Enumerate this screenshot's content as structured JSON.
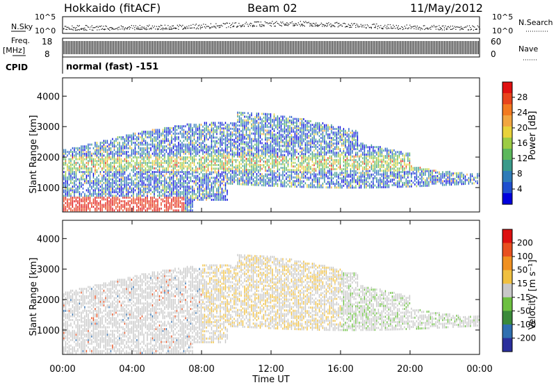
{
  "header": {
    "station": "Hokkaido (fitACF)",
    "beam": "Beam 02",
    "date": "11/May/2012"
  },
  "top_panels": {
    "nsky_label": "N.Sky",
    "nsearch_label": "N.Search",
    "nsky_ticks": [
      "10^5",
      "10^0"
    ],
    "nsearch_ticks": [
      "10^5",
      "10^0"
    ],
    "freq_label": "Freq.",
    "freq_unit": "[MHz]",
    "freq_ticks": [
      "18",
      "8"
    ],
    "nave_label": "Nave",
    "nave_ticks": [
      "60",
      "0"
    ],
    "cpid_label": "CPID",
    "cpid_value": "normal (fast) -151"
  },
  "chart_data": [
    {
      "type": "heatmap",
      "ylabel": "Slant Range [km]",
      "yticks": [
        "4000",
        "3000",
        "2000",
        "1000"
      ],
      "ylim": [
        200,
        4600
      ],
      "xlim": [
        0,
        24
      ],
      "colorbar": {
        "label": "Power [dB]",
        "ticks": [
          "28",
          "24",
          "20",
          "16",
          "12",
          "8",
          "4"
        ],
        "colors": [
          "#0000dd",
          "#1f4fcf",
          "#2e7bb8",
          "#3a9a8a",
          "#5cb85c",
          "#9ccc44",
          "#e8d23a",
          "#f2a640",
          "#f37a20",
          "#e8441c",
          "#e01010"
        ]
      }
    },
    {
      "type": "heatmap",
      "xlabel": "Time UT",
      "ylabel": "Slant Range [km]",
      "yticks": [
        "4000",
        "3000",
        "2000",
        "1000"
      ],
      "xticks": [
        "00:00",
        "04:00",
        "08:00",
        "12:00",
        "16:00",
        "20:00",
        "00:00"
      ],
      "ylim": [
        200,
        4600
      ],
      "xlim": [
        0,
        24
      ],
      "colorbar": {
        "label": "Velocity [m s⁻¹]",
        "ticks": [
          "200",
          "100",
          "50",
          "15",
          "-15",
          "-50",
          "-100",
          "-200"
        ],
        "colors": [
          "#2a2f9c",
          "#2f6fb0",
          "#3a8a3a",
          "#6cc040",
          "#c8c8c8",
          "#f0c040",
          "#f09020",
          "#e85020",
          "#dd1010"
        ]
      }
    }
  ]
}
